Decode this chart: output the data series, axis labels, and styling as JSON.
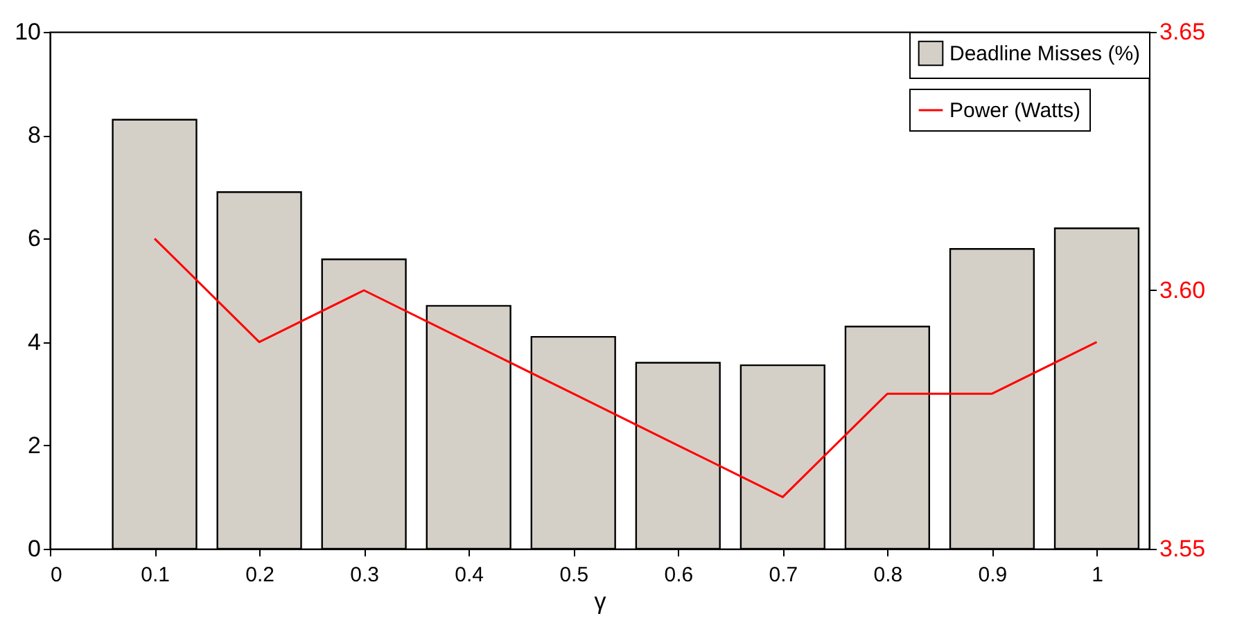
{
  "chart_data": {
    "type": "bar",
    "xlabel": "γ",
    "x": [
      0.1,
      0.2,
      0.3,
      0.4,
      0.5,
      0.6,
      0.7,
      0.8,
      0.9,
      1
    ],
    "series": [
      {
        "name": "Deadline Misses (%)",
        "color": "#d4d0c8",
        "values": [
          8.3,
          6.9,
          5.6,
          4.7,
          4.1,
          3.6,
          3.55,
          4.3,
          5.8,
          6.2
        ]
      },
      {
        "name": "Power (Watts)",
        "type": "line",
        "axis": "y2",
        "color": "#ff0000",
        "values": [
          3.61,
          3.59,
          3.6,
          3.59,
          3.58,
          3.57,
          3.56,
          3.58,
          3.58,
          3.59
        ]
      }
    ],
    "xlim": [
      0,
      1.05
    ],
    "xticks": [
      0,
      0.1,
      0.2,
      0.3,
      0.4,
      0.5,
      0.6,
      0.7,
      0.8,
      0.9,
      1
    ],
    "ylim": [
      0,
      10
    ],
    "yticks": [
      0,
      2,
      4,
      6,
      8,
      10
    ],
    "y2lim": [
      3.55,
      3.65
    ],
    "y2ticks": [
      {
        "value": 3.55,
        "label": "3.55"
      },
      {
        "value": 3.6,
        "label": "3.60"
      },
      {
        "value": 3.65,
        "label": "3.65"
      }
    ],
    "legend": "top right",
    "grid": false
  }
}
